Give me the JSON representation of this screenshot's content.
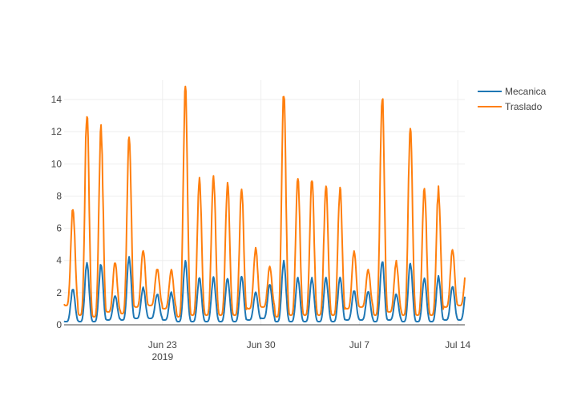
{
  "chart_data": {
    "type": "line",
    "title": "",
    "xlabel": "",
    "ylabel": "",
    "x_range": [
      "2019-06-16T00:00",
      "2019-07-14T12:00"
    ],
    "ylim": [
      0,
      15.2
    ],
    "y_ticks": [
      0,
      2,
      4,
      6,
      8,
      10,
      12,
      14
    ],
    "x_ticks": [
      {
        "date": "2019-06-23",
        "label": "Jun 23",
        "sublabel": "2019"
      },
      {
        "date": "2019-06-30",
        "label": "Jun 30",
        "sublabel": ""
      },
      {
        "date": "2019-07-07",
        "label": "Jul 7",
        "sublabel": ""
      },
      {
        "date": "2019-07-14",
        "label": "Jul 14",
        "sublabel": ""
      }
    ],
    "grid": true,
    "legend_position": "top-right",
    "series": [
      {
        "name": "Mecanica",
        "color": "#1f77b4",
        "daily_pattern": "diurnal",
        "x": [
          "2019-06-16",
          "2019-06-17",
          "2019-06-18",
          "2019-06-19",
          "2019-06-20",
          "2019-06-21",
          "2019-06-22",
          "2019-06-23",
          "2019-06-24",
          "2019-06-25",
          "2019-06-26",
          "2019-06-27",
          "2019-06-28",
          "2019-06-29",
          "2019-06-30",
          "2019-07-01",
          "2019-07-02",
          "2019-07-03",
          "2019-07-04",
          "2019-07-05",
          "2019-07-06",
          "2019-07-07",
          "2019-07-08",
          "2019-07-09",
          "2019-07-10",
          "2019-07-11",
          "2019-07-12",
          "2019-07-13",
          "2019-07-14"
        ],
        "daily_peak": [
          2.2,
          3.8,
          3.8,
          1.8,
          4.2,
          2.3,
          1.9,
          2.0,
          3.9,
          2.9,
          2.9,
          2.9,
          3.0,
          2.0,
          2.5,
          3.9,
          2.9,
          2.9,
          2.9,
          2.9,
          2.1,
          2.1,
          4.0,
          1.9,
          3.8,
          2.9,
          3.0,
          2.4,
          2.4
        ],
        "daily_min": [
          0.2,
          0.2,
          0.2,
          0.3,
          0.3,
          0.4,
          0.4,
          0.3,
          0.2,
          0.2,
          0.2,
          0.2,
          0.2,
          0.3,
          0.4,
          0.2,
          0.2,
          0.2,
          0.2,
          0.2,
          0.3,
          0.3,
          0.2,
          0.3,
          0.2,
          0.2,
          0.2,
          0.3,
          0.3
        ]
      },
      {
        "name": "Traslado",
        "color": "#ff7f0e",
        "daily_pattern": "diurnal",
        "x": [
          "2019-06-16",
          "2019-06-17",
          "2019-06-18",
          "2019-06-19",
          "2019-06-20",
          "2019-06-21",
          "2019-06-22",
          "2019-06-23",
          "2019-06-24",
          "2019-06-25",
          "2019-06-26",
          "2019-06-27",
          "2019-06-28",
          "2019-06-29",
          "2019-06-30",
          "2019-07-01",
          "2019-07-02",
          "2019-07-03",
          "2019-07-04",
          "2019-07-05",
          "2019-07-06",
          "2019-07-07",
          "2019-07-08",
          "2019-07-09",
          "2019-07-10",
          "2019-07-11",
          "2019-07-12",
          "2019-07-13",
          "2019-07-14"
        ],
        "daily_peak": [
          7.2,
          13.1,
          12.1,
          3.9,
          11.6,
          4.7,
          3.5,
          3.4,
          14.7,
          9.1,
          9.3,
          8.8,
          8.4,
          4.7,
          3.6,
          14.3,
          9.1,
          9.1,
          8.6,
          8.5,
          4.6,
          3.4,
          14.3,
          3.9,
          12.4,
          8.6,
          8.4,
          4.7,
          3.7
        ],
        "daily_min": [
          1.2,
          0.6,
          0.5,
          0.8,
          0.7,
          1.1,
          1.2,
          1.0,
          0.5,
          0.6,
          0.6,
          0.6,
          0.6,
          1.0,
          1.1,
          0.5,
          0.6,
          0.6,
          0.6,
          0.6,
          1.0,
          1.1,
          0.6,
          0.8,
          0.6,
          0.6,
          0.6,
          1.1,
          1.2
        ]
      }
    ]
  }
}
